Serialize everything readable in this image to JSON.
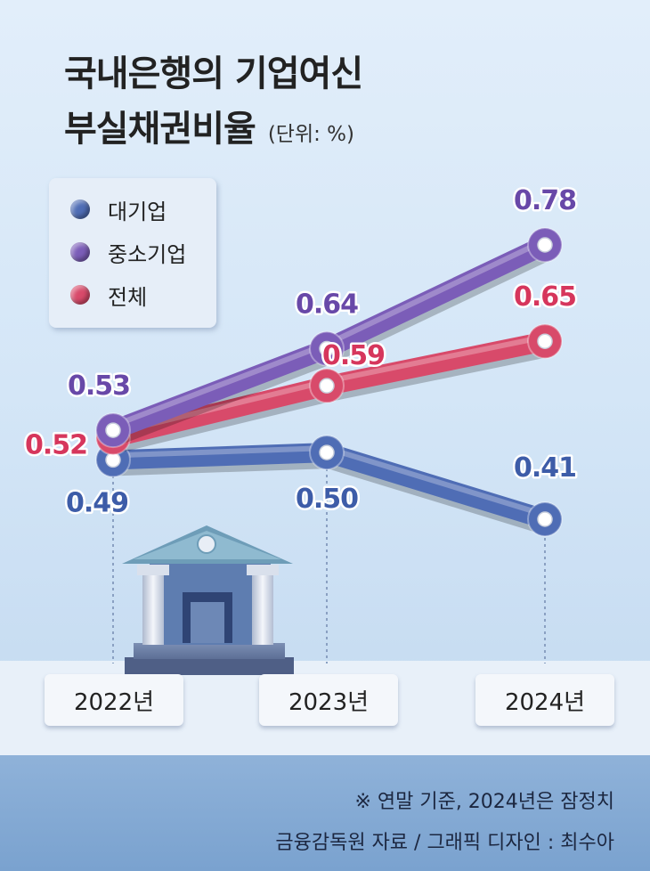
{
  "title_line1": "국내은행의 기업여신",
  "title_line2": "부실채권비율",
  "unit": "(단위: %)",
  "legend": [
    {
      "label": "대기업",
      "color": "#4f6db5"
    },
    {
      "label": "중소기업",
      "color": "#7b5db8"
    },
    {
      "label": "전체",
      "color": "#d84a6a"
    }
  ],
  "chart_data": {
    "type": "line",
    "title": "국내은행의 기업여신 부실채권비율",
    "ylabel": "(단위: %)",
    "categories": [
      "2022년",
      "2023년",
      "2024년"
    ],
    "series": [
      {
        "name": "대기업",
        "values": [
          0.49,
          0.5,
          0.41
        ],
        "labels": [
          "0.49",
          "0.50",
          "0.41"
        ],
        "color": "#4f6db5",
        "label_color": "#3d5ca8"
      },
      {
        "name": "중소기업",
        "values": [
          0.53,
          0.64,
          0.78
        ],
        "labels": [
          "0.53",
          "0.64",
          "0.78"
        ],
        "color": "#7b5db8",
        "label_color": "#6848a8"
      },
      {
        "name": "전체",
        "values": [
          0.52,
          0.59,
          0.65
        ],
        "labels": [
          "0.52",
          "0.59",
          "0.65"
        ],
        "color": "#d84a6a",
        "label_color": "#d6365c"
      }
    ],
    "grid": false,
    "legend_position": "top-left"
  },
  "footer": {
    "note": "※ 연말 기준, 2024년은 잠정치",
    "source": "금융감독원 자료 / 그래픽 디자인 : 최수아"
  }
}
